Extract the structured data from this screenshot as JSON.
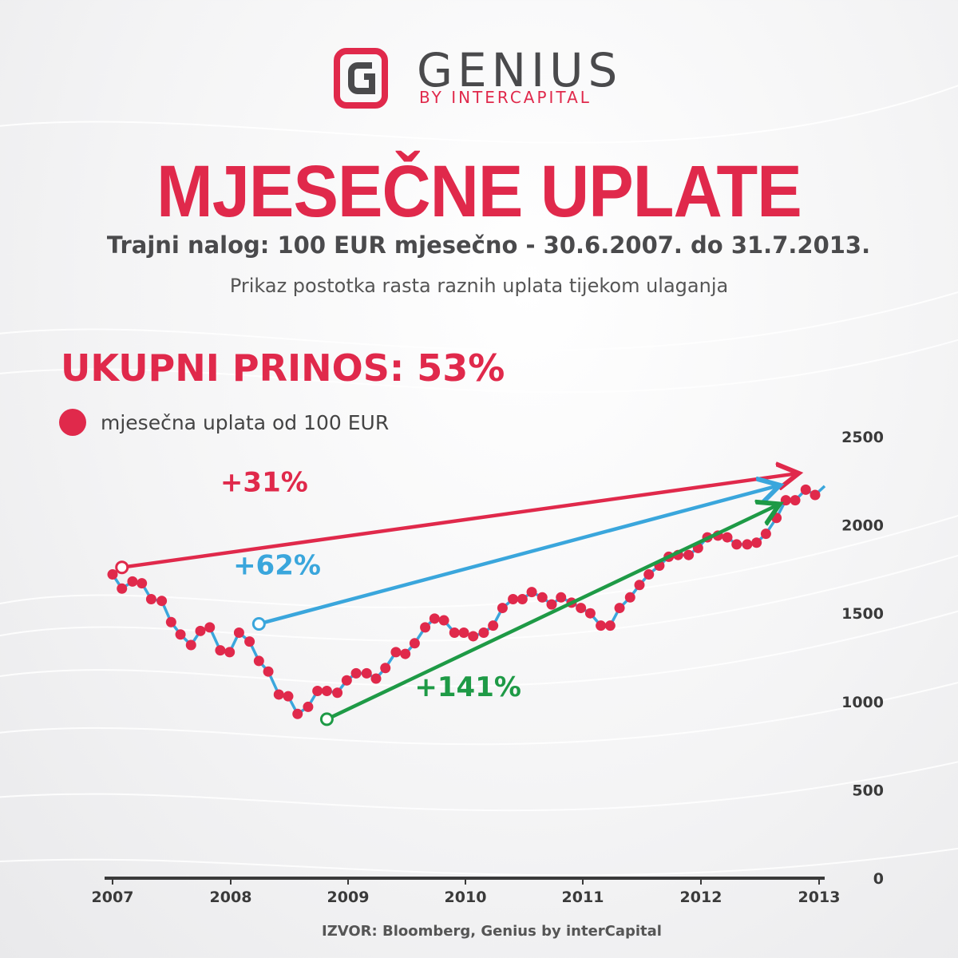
{
  "brand": {
    "name": "GENIUS",
    "sub": "BY INTERCAPITAL",
    "accent": "#e0294b"
  },
  "header": {
    "title": "MJESEČNE UPLATE",
    "subtitle": "Trajni nalog: 100 EUR mjesečno - 30.6.2007. do 31.7.2013.",
    "description": "Prikaz postotka rasta raznih uplata tijekom ulaganja"
  },
  "total_return": "UKUPNI PRINOS: 53%",
  "legend": {
    "label": "mjesečna uplata od 100 EUR",
    "color": "#e0294b"
  },
  "source": "IZVOR: Bloomberg, Genius by interCapital",
  "chart_data": {
    "type": "line",
    "title": "",
    "xlabel": "",
    "ylabel": "",
    "x_ticks": [
      "2007",
      "2008",
      "2009",
      "2010",
      "2011",
      "2012",
      "2013"
    ],
    "xlim": [
      2007.0,
      2013.0
    ],
    "ylim": [
      0,
      2500
    ],
    "y_ticks": [
      0,
      500,
      1000,
      1500,
      2000,
      2500
    ],
    "grid": false,
    "legend_position": "top-left",
    "series": [
      {
        "name": "mjesečna uplata od 100 EUR",
        "marker_color": "#e0294b",
        "line_color": "#3aa6dc",
        "points": [
          [
            2007.0,
            1720
          ],
          [
            2007.08,
            1640
          ],
          [
            2007.17,
            1680
          ],
          [
            2007.25,
            1670
          ],
          [
            2007.33,
            1580
          ],
          [
            2007.42,
            1570
          ],
          [
            2007.5,
            1450
          ],
          [
            2007.58,
            1380
          ],
          [
            2007.67,
            1320
          ],
          [
            2007.75,
            1400
          ],
          [
            2007.83,
            1420
          ],
          [
            2007.92,
            1290
          ],
          [
            2008.0,
            1280
          ],
          [
            2008.08,
            1390
          ],
          [
            2008.17,
            1340
          ],
          [
            2008.25,
            1230
          ],
          [
            2008.33,
            1170
          ],
          [
            2008.42,
            1040
          ],
          [
            2008.5,
            1030
          ],
          [
            2008.58,
            930
          ],
          [
            2008.67,
            970
          ],
          [
            2008.75,
            1060
          ],
          [
            2008.83,
            1060
          ],
          [
            2008.92,
            1050
          ],
          [
            2009.0,
            1120
          ],
          [
            2009.08,
            1160
          ],
          [
            2009.17,
            1160
          ],
          [
            2009.25,
            1130
          ],
          [
            2009.33,
            1190
          ],
          [
            2009.42,
            1280
          ],
          [
            2009.5,
            1270
          ],
          [
            2009.58,
            1330
          ],
          [
            2009.67,
            1420
          ],
          [
            2009.75,
            1470
          ],
          [
            2009.83,
            1460
          ],
          [
            2009.92,
            1390
          ],
          [
            2010.0,
            1390
          ],
          [
            2010.08,
            1370
          ],
          [
            2010.17,
            1390
          ],
          [
            2010.25,
            1430
          ],
          [
            2010.33,
            1530
          ],
          [
            2010.42,
            1580
          ],
          [
            2010.5,
            1580
          ],
          [
            2010.58,
            1620
          ],
          [
            2010.67,
            1590
          ],
          [
            2010.75,
            1550
          ],
          [
            2010.83,
            1590
          ],
          [
            2010.92,
            1560
          ],
          [
            2011.0,
            1530
          ],
          [
            2011.08,
            1500
          ],
          [
            2011.17,
            1430
          ],
          [
            2011.25,
            1430
          ],
          [
            2011.33,
            1530
          ],
          [
            2011.42,
            1590
          ],
          [
            2011.5,
            1660
          ],
          [
            2011.58,
            1720
          ],
          [
            2011.67,
            1770
          ],
          [
            2011.75,
            1820
          ],
          [
            2011.83,
            1830
          ],
          [
            2011.92,
            1830
          ],
          [
            2012.0,
            1870
          ],
          [
            2012.08,
            1930
          ],
          [
            2012.17,
            1940
          ],
          [
            2012.25,
            1930
          ],
          [
            2012.33,
            1890
          ],
          [
            2012.42,
            1890
          ],
          [
            2012.5,
            1900
          ],
          [
            2012.58,
            1950
          ],
          [
            2012.67,
            2040
          ],
          [
            2012.75,
            2140
          ],
          [
            2012.83,
            2140
          ],
          [
            2012.92,
            2200
          ],
          [
            2013.0,
            2170
          ]
        ]
      }
    ],
    "annotations": [
      {
        "label": "+31%",
        "color": "#e0294b",
        "from": [
          2007.08,
          1760
        ],
        "to": [
          2012.83,
          2290
        ],
        "label_at": [
          2007.92,
          2190
        ]
      },
      {
        "label": "+62%",
        "color": "#3aa6dc",
        "from": [
          2008.25,
          1440
        ],
        "to": [
          2012.67,
          2220
        ],
        "label_at": [
          2008.03,
          1720
        ]
      },
      {
        "label": "+141%",
        "color": "#1e9a46",
        "from": [
          2008.83,
          900
        ],
        "to": [
          2012.67,
          2110
        ],
        "label_at": [
          2009.58,
          1030
        ]
      }
    ]
  }
}
